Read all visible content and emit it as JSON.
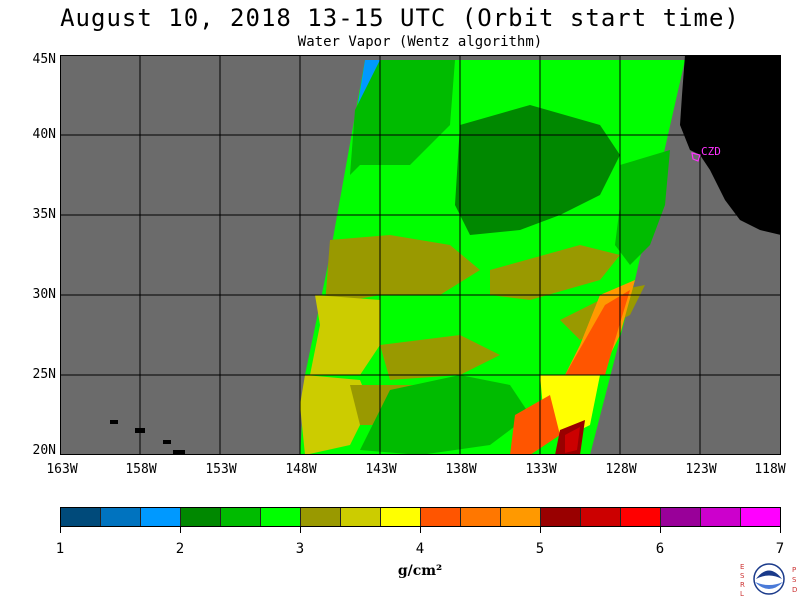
{
  "header": {
    "title": "August 10, 2018  13-15 UTC  (Orbit start time)",
    "subtitle": "Water Vapor (Wentz algorithm)"
  },
  "map": {
    "lat_labels": [
      "45N",
      "40N",
      "35N",
      "30N",
      "25N",
      "20N"
    ],
    "lon_labels": [
      "163W",
      "158W",
      "153W",
      "148W",
      "143W",
      "138W",
      "133W",
      "128W",
      "123W",
      "118W"
    ],
    "station_label": "CZD",
    "colors": {
      "ocean": "#6b6b6b",
      "land": "#000000",
      "grid": "#000000",
      "station": "#ff33ff"
    }
  },
  "colorbar": {
    "colors": [
      "#004a7a",
      "#0073bf",
      "#0099ff",
      "#008800",
      "#00bb00",
      "#00ff00",
      "#999900",
      "#cccc00",
      "#ffff00",
      "#ff5500",
      "#ff7700",
      "#ff9900",
      "#990000",
      "#cc0000",
      "#ff0000",
      "#990099",
      "#cc00cc",
      "#ff00ff"
    ],
    "tick_labels": [
      "1",
      "2",
      "3",
      "4",
      "5",
      "6",
      "7"
    ],
    "units": "g/cm²"
  },
  "logo": {
    "left_letters": "ESRL",
    "right_letters": "PSD",
    "name": "NOAA"
  }
}
